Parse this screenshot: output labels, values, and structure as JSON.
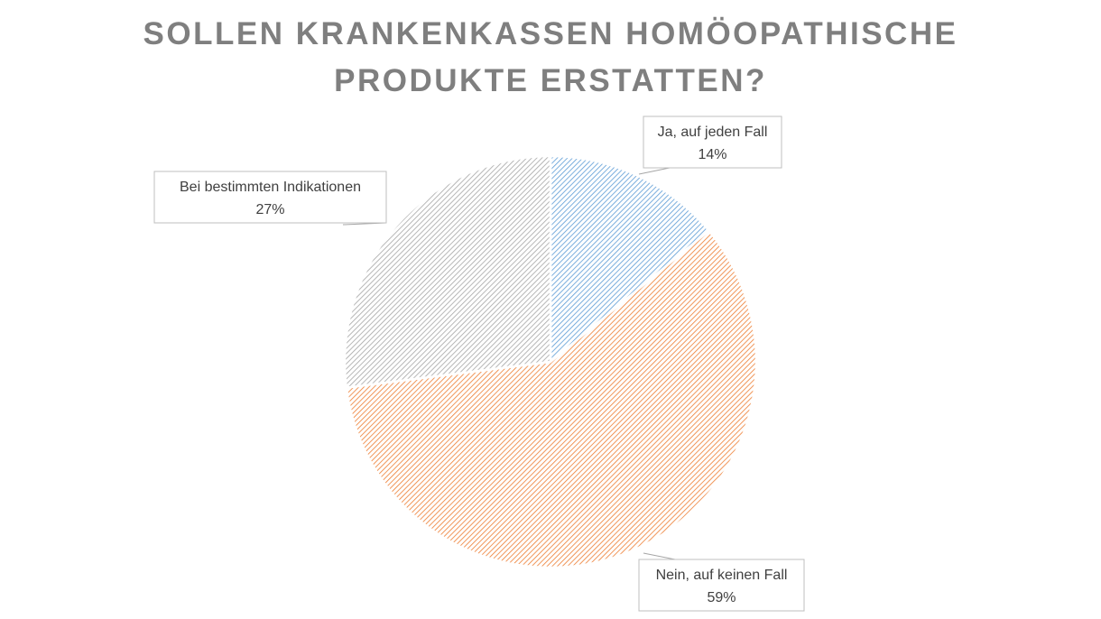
{
  "chart_data": {
    "type": "pie",
    "title_lines": [
      "SOLLEN KRANKENKASSEN HOMÖOPATHISCHE",
      "PRODUKTE ERSTATTEN?"
    ],
    "slices": [
      {
        "name": "Ja, auf jeden Fall",
        "value": 14,
        "label": "14%",
        "color": "#5b9bd5"
      },
      {
        "name": "Nein, auf keinen Fall",
        "value": 59,
        "label": "59%",
        "color": "#ed7d31"
      },
      {
        "name": "Bei bestimmten Indikationen",
        "value": 27,
        "label": "27%",
        "color": "#a5a5a5"
      }
    ],
    "legend": "none",
    "data_labels": "callouts",
    "pattern": "diagonal-hatch"
  }
}
